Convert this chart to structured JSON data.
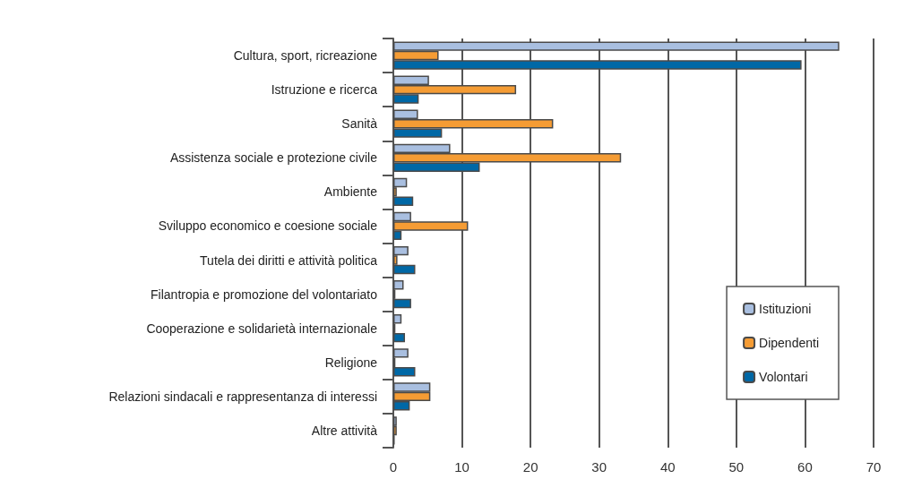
{
  "chart_data": {
    "type": "bar",
    "orientation": "horizontal",
    "categories": [
      "Cultura, sport, ricreazione",
      "Istruzione e ricerca",
      "Sanità",
      "Assistenza sociale e protezione civile",
      "Ambiente",
      "Sviluppo economico e coesione sociale",
      "Tutela dei diritti e attività politica",
      "Filantropia e promozione del volontariato",
      "Cooperazione e solidarietà internazionale",
      "Religione",
      "Relazioni sindacali e rappresentanza di interessi",
      "Altre attività"
    ],
    "series": [
      {
        "name": "Istituzioni",
        "color": "#a9bfe0",
        "values": [
          65,
          5.2,
          3.6,
          8.3,
          2.0,
          2.6,
          2.2,
          1.5,
          1.2,
          2.2,
          5.4,
          0.5
        ]
      },
      {
        "name": "Dipendenti",
        "color": "#f59c34",
        "values": [
          6.6,
          17.9,
          23.3,
          33.2,
          0.5,
          10.9,
          0.6,
          0.3,
          0.3,
          0.3,
          5.4,
          0.5
        ]
      },
      {
        "name": "Volontari",
        "color": "#0068a6",
        "values": [
          59.5,
          3.7,
          7.1,
          12.6,
          2.9,
          1.2,
          3.2,
          2.6,
          1.7,
          3.2,
          2.4,
          0.2
        ]
      }
    ],
    "xlim": [
      0,
      70
    ],
    "xticks": [
      0,
      10,
      20,
      30,
      40,
      50,
      60,
      70
    ],
    "grid": "x",
    "legend": "bottom right"
  }
}
